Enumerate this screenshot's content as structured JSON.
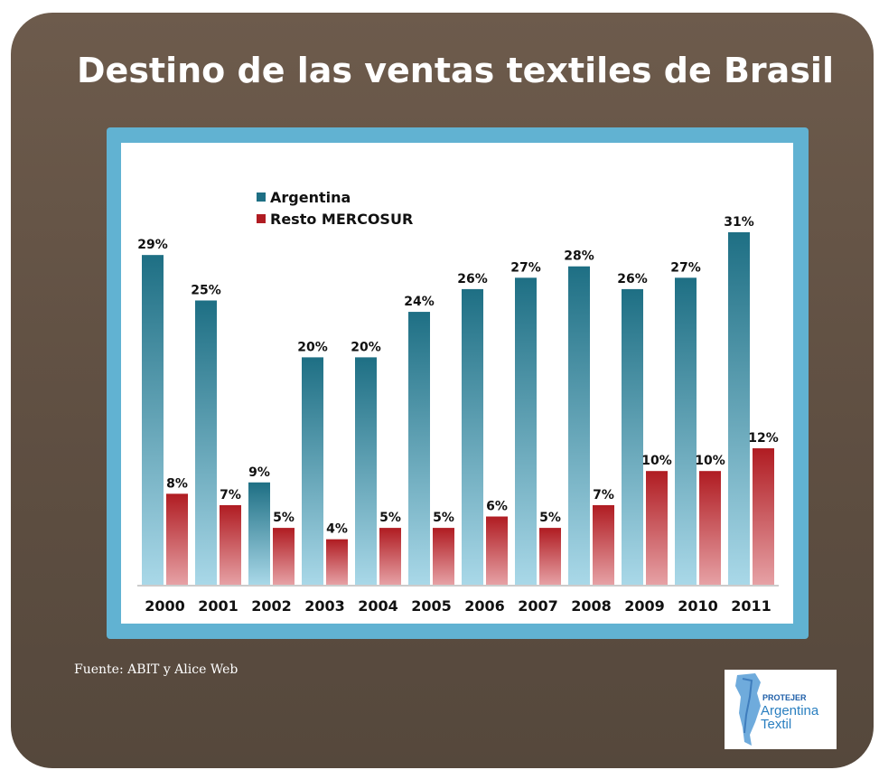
{
  "title": "Destino de las ventas textiles de Brasil",
  "source": "Fuente: ABIT y Alice Web",
  "logo": {
    "brand": "PROTEJER",
    "line1": "Argentina",
    "line2": "Textil"
  },
  "colors": {
    "argentina": "#1e6f84",
    "resto": "#b01c22",
    "frame": "#61b2d2",
    "background": "#5f4f42"
  },
  "chart_data": {
    "type": "bar",
    "categories": [
      "2000",
      "2001",
      "2002",
      "2003",
      "2004",
      "2005",
      "2006",
      "2007",
      "2008",
      "2009",
      "2010",
      "2011"
    ],
    "series": [
      {
        "name": "Argentina",
        "values": [
          29,
          25,
          9,
          20,
          20,
          24,
          26,
          27,
          28,
          26,
          27,
          31
        ]
      },
      {
        "name": "Resto MERCOSUR",
        "values": [
          8,
          7,
          5,
          4,
          5,
          5,
          6,
          5,
          7,
          10,
          10,
          12
        ]
      }
    ],
    "data_labels": {
      "Argentina": [
        "29%",
        "25%",
        "9%",
        "20%",
        "20%",
        "24%",
        "26%",
        "27%",
        "28%",
        "26%",
        "27%",
        "31%"
      ],
      "Resto MERCOSUR": [
        "8%",
        "7%",
        "5%",
        "4%",
        "5%",
        "5%",
        "6%",
        "5%",
        "7%",
        "10%",
        "10%",
        "12%"
      ]
    },
    "legend": "top-left",
    "grid": false,
    "ylim": [
      0,
      31
    ]
  }
}
